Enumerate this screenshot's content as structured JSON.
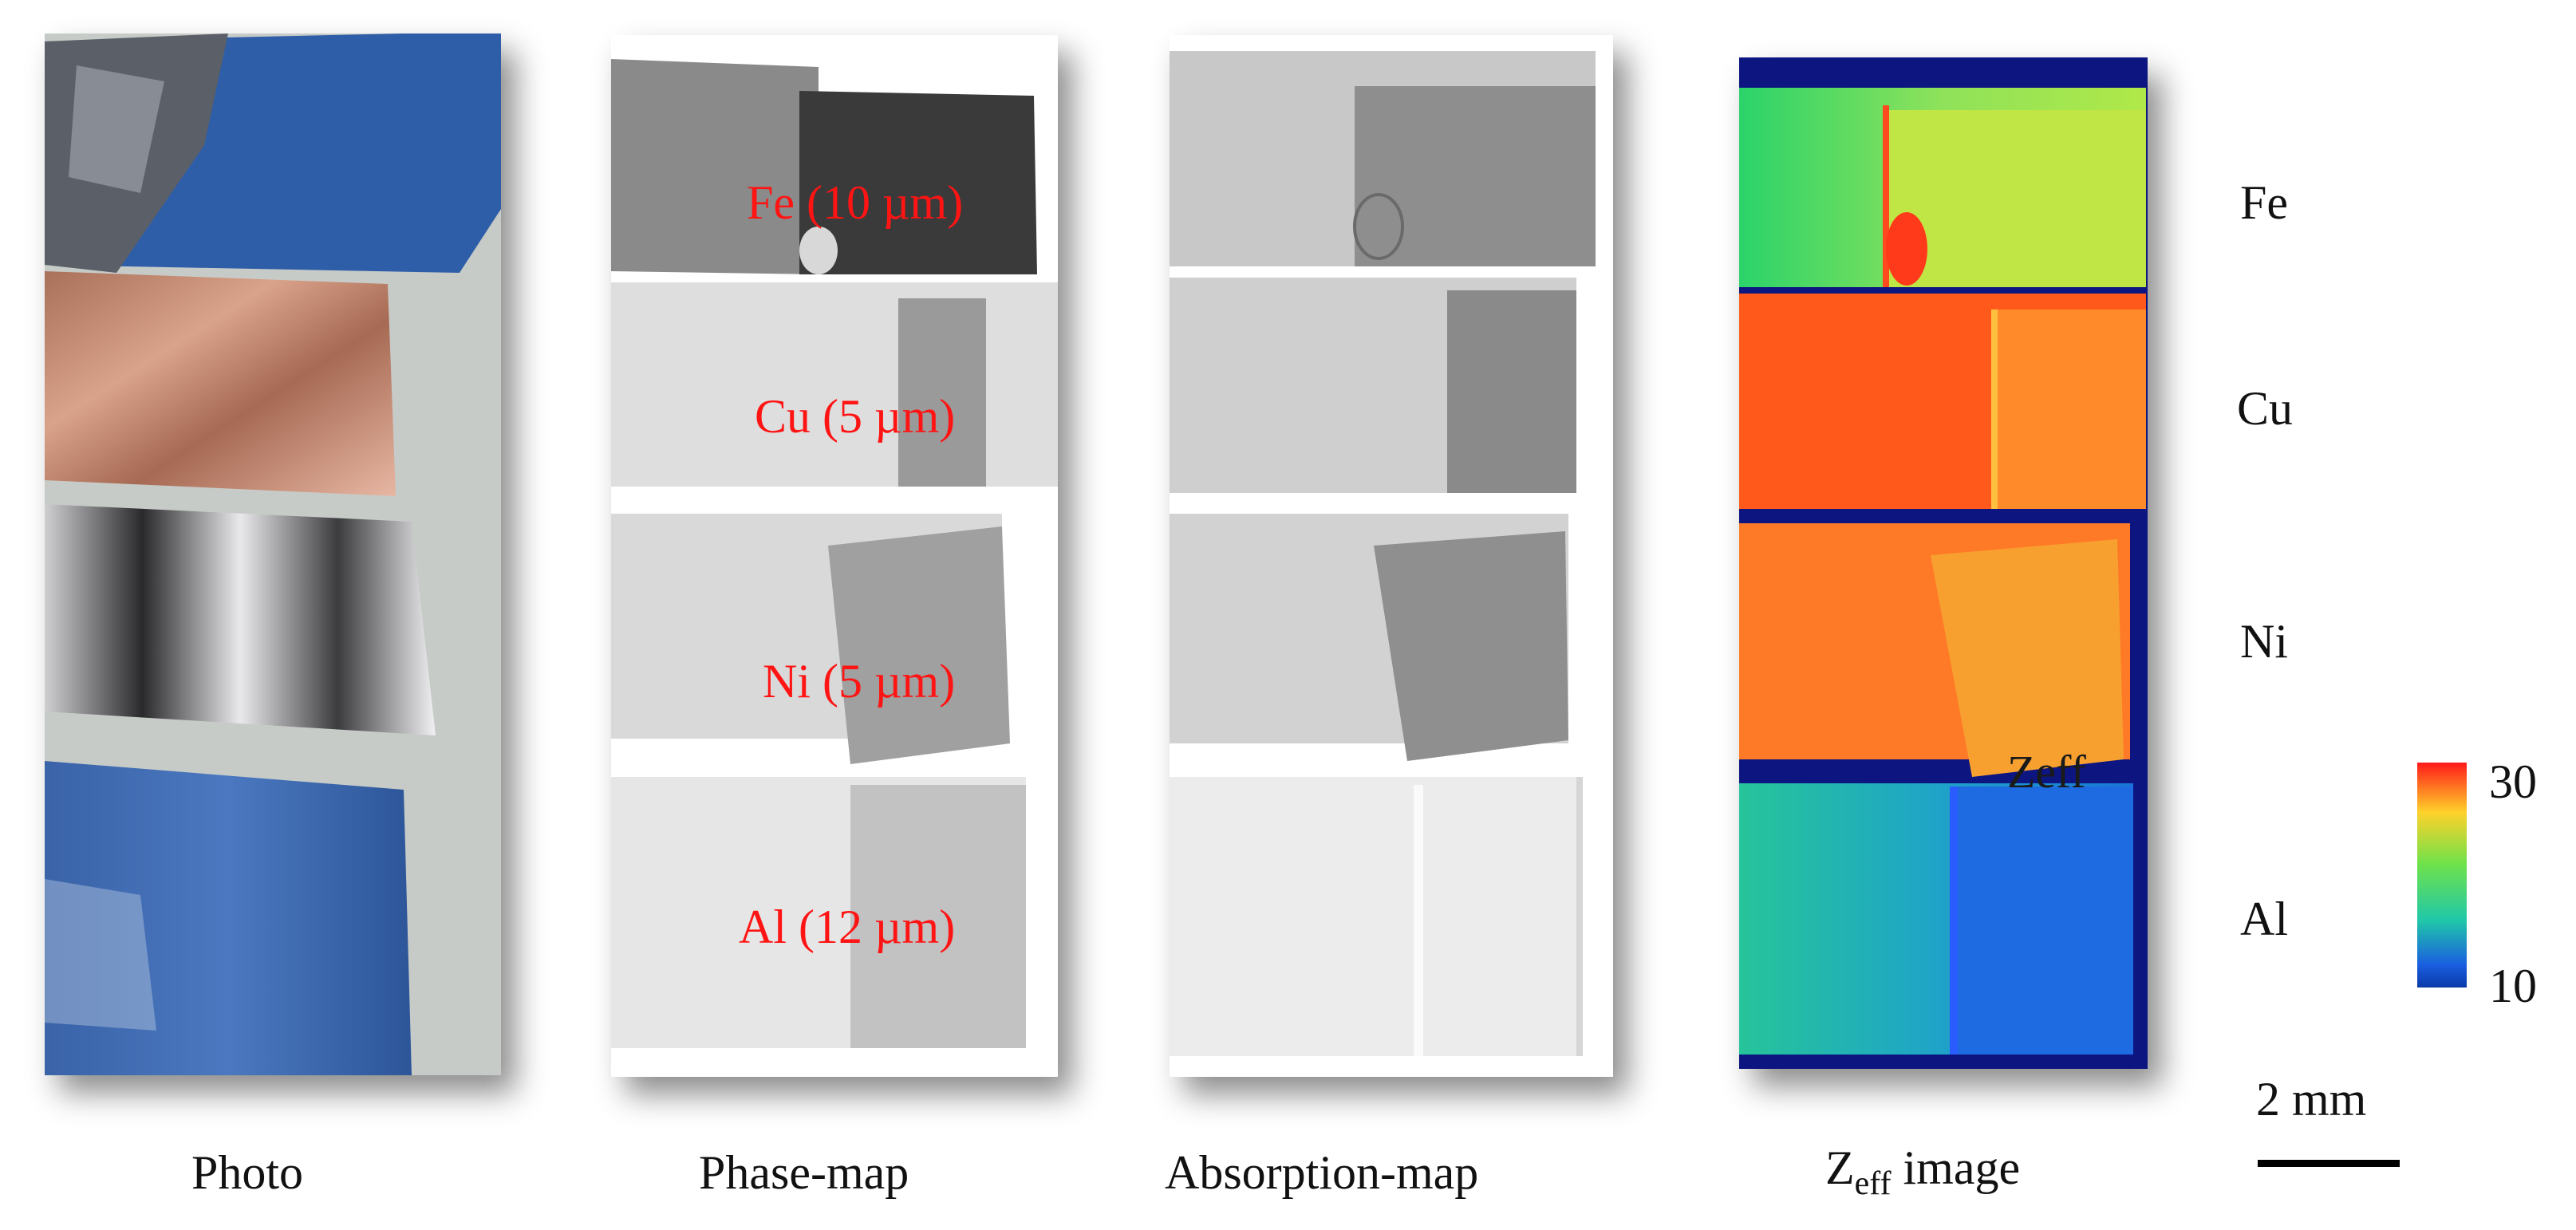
{
  "captions": {
    "photo": "Photo",
    "phase": "Phase-map",
    "absorption": "Absorption-map",
    "zeff_main": "Z",
    "zeff_sub": "eff",
    "zeff_rest": " image"
  },
  "phase_labels": [
    "Fe (10 µm)",
    "Cu (5 µm)",
    "Ni (5 µm)",
    "Al (12 µm)"
  ],
  "row_labels": [
    "Fe",
    "Cu",
    "Ni",
    "Al"
  ],
  "zeff_overlay_text": "Zeff",
  "colorbar": {
    "max": "30",
    "min": "10"
  },
  "scalebar": {
    "label": "2 mm"
  }
}
